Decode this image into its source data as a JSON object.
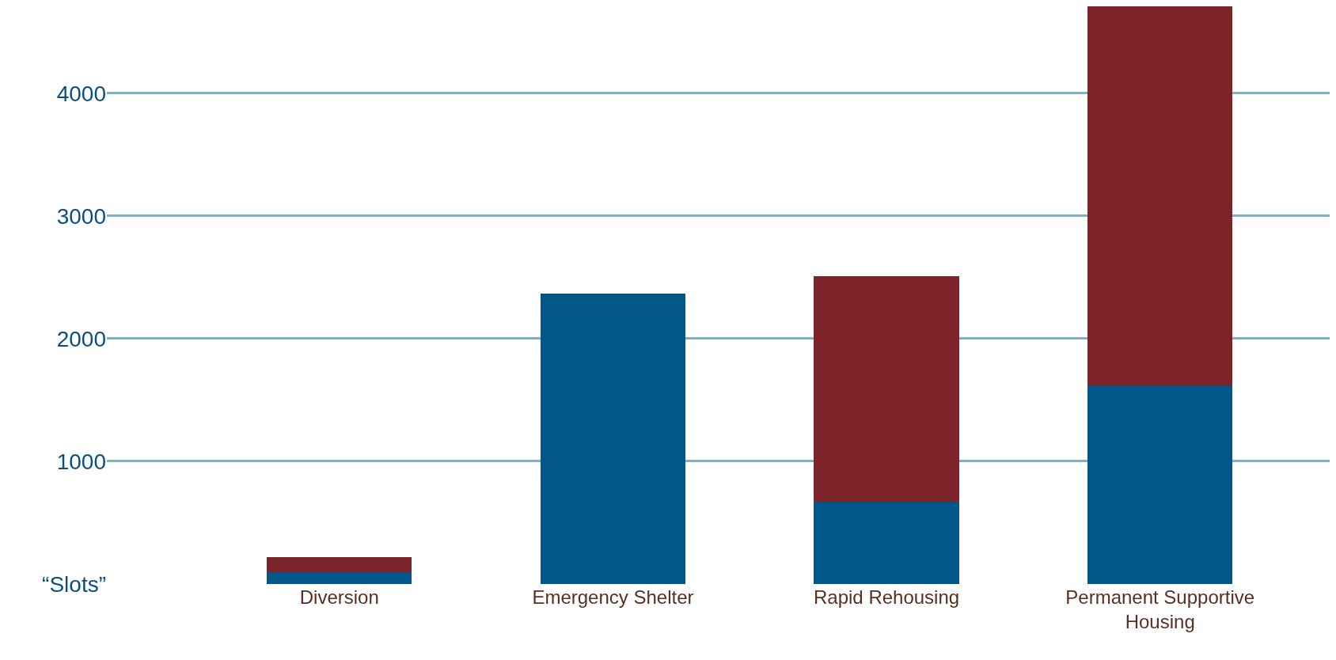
{
  "chart_data": {
    "type": "bar",
    "stacked": true,
    "categories": [
      "Diversion",
      "Emergency Shelter",
      "Rapid Rehousing",
      "Permanent Supportive Housing"
    ],
    "series": [
      {
        "color": "#02568a",
        "values": [
          100,
          2370,
          670,
          1620
        ]
      },
      {
        "color": "#7c2429",
        "values": [
          120,
          null,
          1840,
          3090
        ]
      }
    ],
    "ylim": [
      0,
      4760
    ],
    "yticks": [
      {
        "value": 0,
        "label": "“Slots”"
      },
      1000,
      2000,
      3000,
      4000
    ],
    "grid": "y",
    "legend": false
  }
}
